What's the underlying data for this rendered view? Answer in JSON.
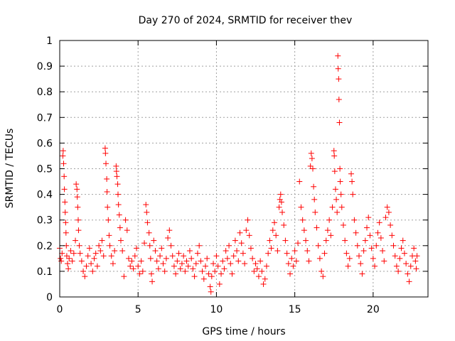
{
  "chart_data": {
    "type": "scatter",
    "title": "Day 270 of 2024, SRMTID for receiver thev",
    "xlabel": "GPS time / hours",
    "ylabel": "SRMTID / TECUs",
    "xlim": [
      0,
      23.5
    ],
    "ylim": [
      0,
      1
    ],
    "x_ticks": [
      0,
      5,
      10,
      15,
      20
    ],
    "x_tick_labels": [
      "0",
      "5",
      "10",
      "15",
      "20"
    ],
    "y_ticks": [
      0,
      0.1,
      0.2,
      0.3,
      0.4,
      0.5,
      0.6,
      0.7,
      0.8,
      0.9,
      1
    ],
    "y_tick_labels": [
      "0",
      "0.1",
      "0.2",
      "0.3",
      "0.4",
      "0.5",
      "0.6",
      "0.7",
      "0.8",
      "0.9",
      "1"
    ],
    "grid": true,
    "marker": "+",
    "series": [
      {
        "name": "SRMTID",
        "color": "#ff0000",
        "points": [
          [
            0.0,
            0.19
          ],
          [
            0.05,
            0.15
          ],
          [
            0.1,
            0.14
          ],
          [
            0.15,
            0.17
          ],
          [
            0.2,
            0.55
          ],
          [
            0.22,
            0.57
          ],
          [
            0.25,
            0.52
          ],
          [
            0.28,
            0.47
          ],
          [
            0.3,
            0.42
          ],
          [
            0.33,
            0.37
          ],
          [
            0.35,
            0.33
          ],
          [
            0.38,
            0.29
          ],
          [
            0.4,
            0.25
          ],
          [
            0.42,
            0.2
          ],
          [
            0.45,
            0.16
          ],
          [
            0.5,
            0.13
          ],
          [
            0.55,
            0.11
          ],
          [
            0.6,
            0.15
          ],
          [
            0.7,
            0.18
          ],
          [
            0.8,
            0.14
          ],
          [
            0.9,
            0.17
          ],
          [
            1.0,
            0.22
          ],
          [
            1.05,
            0.44
          ],
          [
            1.1,
            0.42
          ],
          [
            1.12,
            0.39
          ],
          [
            1.15,
            0.35
          ],
          [
            1.18,
            0.3
          ],
          [
            1.2,
            0.26
          ],
          [
            1.25,
            0.2
          ],
          [
            1.3,
            0.17
          ],
          [
            1.4,
            0.14
          ],
          [
            1.5,
            0.1
          ],
          [
            1.6,
            0.08
          ],
          [
            1.7,
            0.12
          ],
          [
            1.8,
            0.16
          ],
          [
            1.9,
            0.19
          ],
          [
            2.0,
            0.13
          ],
          [
            2.1,
            0.1
          ],
          [
            2.2,
            0.15
          ],
          [
            2.3,
            0.17
          ],
          [
            2.4,
            0.12
          ],
          [
            2.5,
            0.2
          ],
          [
            2.6,
            0.18
          ],
          [
            2.7,
            0.22
          ],
          [
            2.8,
            0.16
          ],
          [
            2.9,
            0.58
          ],
          [
            2.92,
            0.56
          ],
          [
            2.95,
            0.52
          ],
          [
            3.0,
            0.46
          ],
          [
            3.02,
            0.41
          ],
          [
            3.05,
            0.35
          ],
          [
            3.1,
            0.3
          ],
          [
            3.15,
            0.24
          ],
          [
            3.2,
            0.2
          ],
          [
            3.3,
            0.16
          ],
          [
            3.4,
            0.13
          ],
          [
            3.5,
            0.18
          ],
          [
            3.6,
            0.51
          ],
          [
            3.62,
            0.49
          ],
          [
            3.65,
            0.47
          ],
          [
            3.7,
            0.44
          ],
          [
            3.72,
            0.4
          ],
          [
            3.75,
            0.36
          ],
          [
            3.8,
            0.32
          ],
          [
            3.85,
            0.27
          ],
          [
            3.9,
            0.22
          ],
          [
            4.0,
            0.18
          ],
          [
            4.1,
            0.08
          ],
          [
            4.2,
            0.3
          ],
          [
            4.3,
            0.26
          ],
          [
            4.4,
            0.15
          ],
          [
            4.5,
            0.12
          ],
          [
            4.6,
            0.14
          ],
          [
            4.7,
            0.11
          ],
          [
            4.8,
            0.16
          ],
          [
            4.9,
            0.19
          ],
          [
            5.0,
            0.12
          ],
          [
            5.1,
            0.09
          ],
          [
            5.2,
            0.14
          ],
          [
            5.3,
            0.1
          ],
          [
            5.4,
            0.21
          ],
          [
            5.5,
            0.36
          ],
          [
            5.55,
            0.33
          ],
          [
            5.6,
            0.29
          ],
          [
            5.7,
            0.25
          ],
          [
            5.75,
            0.2
          ],
          [
            5.8,
            0.15
          ],
          [
            5.85,
            0.09
          ],
          [
            5.9,
            0.06
          ],
          [
            6.0,
            0.22
          ],
          [
            6.1,
            0.18
          ],
          [
            6.2,
            0.14
          ],
          [
            6.3,
            0.11
          ],
          [
            6.4,
            0.16
          ],
          [
            6.5,
            0.19
          ],
          [
            6.6,
            0.13
          ],
          [
            6.7,
            0.1
          ],
          [
            6.8,
            0.15
          ],
          [
            6.9,
            0.23
          ],
          [
            7.0,
            0.26
          ],
          [
            7.1,
            0.2
          ],
          [
            7.2,
            0.16
          ],
          [
            7.3,
            0.12
          ],
          [
            7.4,
            0.09
          ],
          [
            7.5,
            0.14
          ],
          [
            7.6,
            0.17
          ],
          [
            7.7,
            0.11
          ],
          [
            7.8,
            0.13
          ],
          [
            7.9,
            0.16
          ],
          [
            8.0,
            0.1
          ],
          [
            8.1,
            0.14
          ],
          [
            8.2,
            0.12
          ],
          [
            8.3,
            0.18
          ],
          [
            8.4,
            0.15
          ],
          [
            8.5,
            0.11
          ],
          [
            8.6,
            0.08
          ],
          [
            8.7,
            0.13
          ],
          [
            8.8,
            0.17
          ],
          [
            8.9,
            0.2
          ],
          [
            9.0,
            0.14
          ],
          [
            9.1,
            0.1
          ],
          [
            9.2,
            0.07
          ],
          [
            9.3,
            0.12
          ],
          [
            9.4,
            0.15
          ],
          [
            9.5,
            0.09
          ],
          [
            9.6,
            0.04
          ],
          [
            9.65,
            0.02
          ],
          [
            9.7,
            0.08
          ],
          [
            9.8,
            0.13
          ],
          [
            9.9,
            0.1
          ],
          [
            10.0,
            0.16
          ],
          [
            10.1,
            0.12
          ],
          [
            10.2,
            0.05
          ],
          [
            10.3,
            0.09
          ],
          [
            10.4,
            0.14
          ],
          [
            10.5,
            0.11
          ],
          [
            10.6,
            0.18
          ],
          [
            10.7,
            0.15
          ],
          [
            10.8,
            0.2
          ],
          [
            10.9,
            0.13
          ],
          [
            11.0,
            0.09
          ],
          [
            11.1,
            0.16
          ],
          [
            11.2,
            0.22
          ],
          [
            11.3,
            0.18
          ],
          [
            11.4,
            0.14
          ],
          [
            11.5,
            0.25
          ],
          [
            11.6,
            0.21
          ],
          [
            11.7,
            0.17
          ],
          [
            11.8,
            0.13
          ],
          [
            11.9,
            0.26
          ],
          [
            12.0,
            0.3
          ],
          [
            12.1,
            0.24
          ],
          [
            12.2,
            0.19
          ],
          [
            12.3,
            0.15
          ],
          [
            12.4,
            0.1
          ],
          [
            12.5,
            0.13
          ],
          [
            12.6,
            0.11
          ],
          [
            12.7,
            0.08
          ],
          [
            12.8,
            0.14
          ],
          [
            12.9,
            0.1
          ],
          [
            13.0,
            0.05
          ],
          [
            13.1,
            0.07
          ],
          [
            13.2,
            0.12
          ],
          [
            13.3,
            0.17
          ],
          [
            13.4,
            0.22
          ],
          [
            13.5,
            0.19
          ],
          [
            13.6,
            0.26
          ],
          [
            13.7,
            0.29
          ],
          [
            13.8,
            0.24
          ],
          [
            13.9,
            0.18
          ],
          [
            14.0,
            0.35
          ],
          [
            14.05,
            0.38
          ],
          [
            14.1,
            0.4
          ],
          [
            14.15,
            0.37
          ],
          [
            14.2,
            0.33
          ],
          [
            14.3,
            0.28
          ],
          [
            14.4,
            0.22
          ],
          [
            14.5,
            0.17
          ],
          [
            14.6,
            0.13
          ],
          [
            14.7,
            0.09
          ],
          [
            14.8,
            0.15
          ],
          [
            14.9,
            0.12
          ],
          [
            15.0,
            0.18
          ],
          [
            15.1,
            0.14
          ],
          [
            15.2,
            0.21
          ],
          [
            15.3,
            0.45
          ],
          [
            15.4,
            0.35
          ],
          [
            15.5,
            0.3
          ],
          [
            15.6,
            0.26
          ],
          [
            15.7,
            0.22
          ],
          [
            15.8,
            0.18
          ],
          [
            15.9,
            0.14
          ],
          [
            16.0,
            0.51
          ],
          [
            16.05,
            0.56
          ],
          [
            16.1,
            0.54
          ],
          [
            16.15,
            0.5
          ],
          [
            16.2,
            0.43
          ],
          [
            16.25,
            0.38
          ],
          [
            16.3,
            0.33
          ],
          [
            16.4,
            0.27
          ],
          [
            16.5,
            0.2
          ],
          [
            16.6,
            0.15
          ],
          [
            16.7,
            0.1
          ],
          [
            16.8,
            0.08
          ],
          [
            16.9,
            0.17
          ],
          [
            17.0,
            0.22
          ],
          [
            17.1,
            0.26
          ],
          [
            17.2,
            0.3
          ],
          [
            17.3,
            0.24
          ],
          [
            17.4,
            0.35
          ],
          [
            17.5,
            0.57
          ],
          [
            17.52,
            0.55
          ],
          [
            17.55,
            0.49
          ],
          [
            17.6,
            0.42
          ],
          [
            17.65,
            0.38
          ],
          [
            17.7,
            0.33
          ],
          [
            17.75,
            0.94
          ],
          [
            17.77,
            0.89
          ],
          [
            17.8,
            0.85
          ],
          [
            17.82,
            0.77
          ],
          [
            17.85,
            0.68
          ],
          [
            17.88,
            0.5
          ],
          [
            17.9,
            0.45
          ],
          [
            17.95,
            0.4
          ],
          [
            18.0,
            0.35
          ],
          [
            18.1,
            0.28
          ],
          [
            18.2,
            0.22
          ],
          [
            18.3,
            0.17
          ],
          [
            18.4,
            0.12
          ],
          [
            18.5,
            0.15
          ],
          [
            18.6,
            0.48
          ],
          [
            18.65,
            0.45
          ],
          [
            18.7,
            0.4
          ],
          [
            18.8,
            0.3
          ],
          [
            18.9,
            0.25
          ],
          [
            19.0,
            0.2
          ],
          [
            19.1,
            0.16
          ],
          [
            19.2,
            0.13
          ],
          [
            19.3,
            0.09
          ],
          [
            19.4,
            0.18
          ],
          [
            19.5,
            0.22
          ],
          [
            19.6,
            0.27
          ],
          [
            19.7,
            0.31
          ],
          [
            19.8,
            0.24
          ],
          [
            19.9,
            0.19
          ],
          [
            20.0,
            0.15
          ],
          [
            20.1,
            0.12
          ],
          [
            20.2,
            0.2
          ],
          [
            20.3,
            0.25
          ],
          [
            20.4,
            0.29
          ],
          [
            20.5,
            0.23
          ],
          [
            20.6,
            0.18
          ],
          [
            20.7,
            0.14
          ],
          [
            20.8,
            0.31
          ],
          [
            20.9,
            0.35
          ],
          [
            21.0,
            0.33
          ],
          [
            21.1,
            0.28
          ],
          [
            21.2,
            0.24
          ],
          [
            21.3,
            0.2
          ],
          [
            21.4,
            0.16
          ],
          [
            21.5,
            0.12
          ],
          [
            21.6,
            0.1
          ],
          [
            21.7,
            0.15
          ],
          [
            21.8,
            0.19
          ],
          [
            21.9,
            0.22
          ],
          [
            22.0,
            0.17
          ],
          [
            22.1,
            0.13
          ],
          [
            22.2,
            0.09
          ],
          [
            22.3,
            0.06
          ],
          [
            22.4,
            0.12
          ],
          [
            22.5,
            0.16
          ],
          [
            22.6,
            0.19
          ],
          [
            22.7,
            0.14
          ],
          [
            22.75,
            0.11
          ],
          [
            22.8,
            0.16
          ]
        ]
      }
    ]
  }
}
